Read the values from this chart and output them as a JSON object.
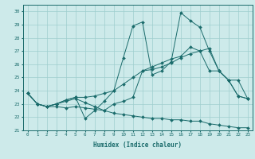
{
  "title": "",
  "xlabel": "Humidex (Indice chaleur)",
  "xlim": [
    -0.5,
    23.5
  ],
  "ylim": [
    21,
    30.5
  ],
  "yticks": [
    21,
    22,
    23,
    24,
    25,
    26,
    27,
    28,
    29,
    30
  ],
  "xticks": [
    0,
    1,
    2,
    3,
    4,
    5,
    6,
    7,
    8,
    9,
    10,
    11,
    12,
    13,
    14,
    15,
    16,
    17,
    18,
    19,
    20,
    21,
    22,
    23
  ],
  "bg_color": "#cdeaea",
  "line_color": "#1a6b6b",
  "grid_color": "#9ecece",
  "lines": [
    {
      "x": [
        0,
        1,
        2,
        3,
        4,
        5,
        6,
        7,
        8,
        9,
        10,
        11,
        12,
        13,
        14,
        15,
        16,
        17,
        18,
        19,
        20,
        21,
        22,
        23
      ],
      "y": [
        23.8,
        23.0,
        22.8,
        23.0,
        23.3,
        23.5,
        21.9,
        22.5,
        23.2,
        24.0,
        26.5,
        28.9,
        29.2,
        25.2,
        25.5,
        26.2,
        29.9,
        29.3,
        28.8,
        27.0,
        25.5,
        24.8,
        23.6,
        23.4
      ]
    },
    {
      "x": [
        0,
        1,
        2,
        3,
        4,
        5,
        6,
        7,
        8,
        9,
        10,
        11,
        12,
        13,
        14,
        15,
        16,
        17,
        18,
        19,
        20,
        21,
        22,
        23
      ],
      "y": [
        23.8,
        23.0,
        22.8,
        23.0,
        23.3,
        23.5,
        23.5,
        23.6,
        23.8,
        24.0,
        24.5,
        25.0,
        25.5,
        25.6,
        25.8,
        26.1,
        26.5,
        26.8,
        27.0,
        27.2,
        25.5,
        24.8,
        23.6,
        23.4
      ]
    },
    {
      "x": [
        0,
        1,
        2,
        3,
        4,
        5,
        6,
        7,
        8,
        9,
        10,
        11,
        12,
        13,
        14,
        15,
        16,
        17,
        18,
        19,
        20,
        21,
        22,
        23
      ],
      "y": [
        23.8,
        23.0,
        22.8,
        23.0,
        23.2,
        23.4,
        23.1,
        22.8,
        22.5,
        23.0,
        23.2,
        23.5,
        25.5,
        25.8,
        26.1,
        26.4,
        26.6,
        27.3,
        27.0,
        25.5,
        25.5,
        24.8,
        24.8,
        23.4
      ]
    },
    {
      "x": [
        0,
        1,
        2,
        3,
        4,
        5,
        6,
        7,
        8,
        9,
        10,
        11,
        12,
        13,
        14,
        15,
        16,
        17,
        18,
        19,
        20,
        21,
        22,
        23
      ],
      "y": [
        23.8,
        23.0,
        22.8,
        22.8,
        22.7,
        22.8,
        22.7,
        22.6,
        22.5,
        22.3,
        22.2,
        22.1,
        22.0,
        21.9,
        21.9,
        21.8,
        21.8,
        21.7,
        21.7,
        21.5,
        21.4,
        21.3,
        21.2,
        21.2
      ]
    }
  ]
}
